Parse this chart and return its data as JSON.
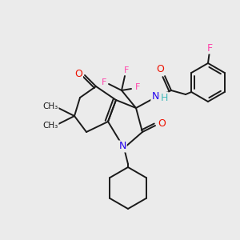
{
  "background_color": "#ebebeb",
  "bond_color": "#1a1a1a",
  "atom_colors": {
    "O": "#ee1100",
    "N": "#2200ee",
    "F": "#ff44aa",
    "H": "#44bbbb",
    "C": "#1a1a1a"
  },
  "figsize": [
    3.0,
    3.0
  ],
  "dpi": 100
}
